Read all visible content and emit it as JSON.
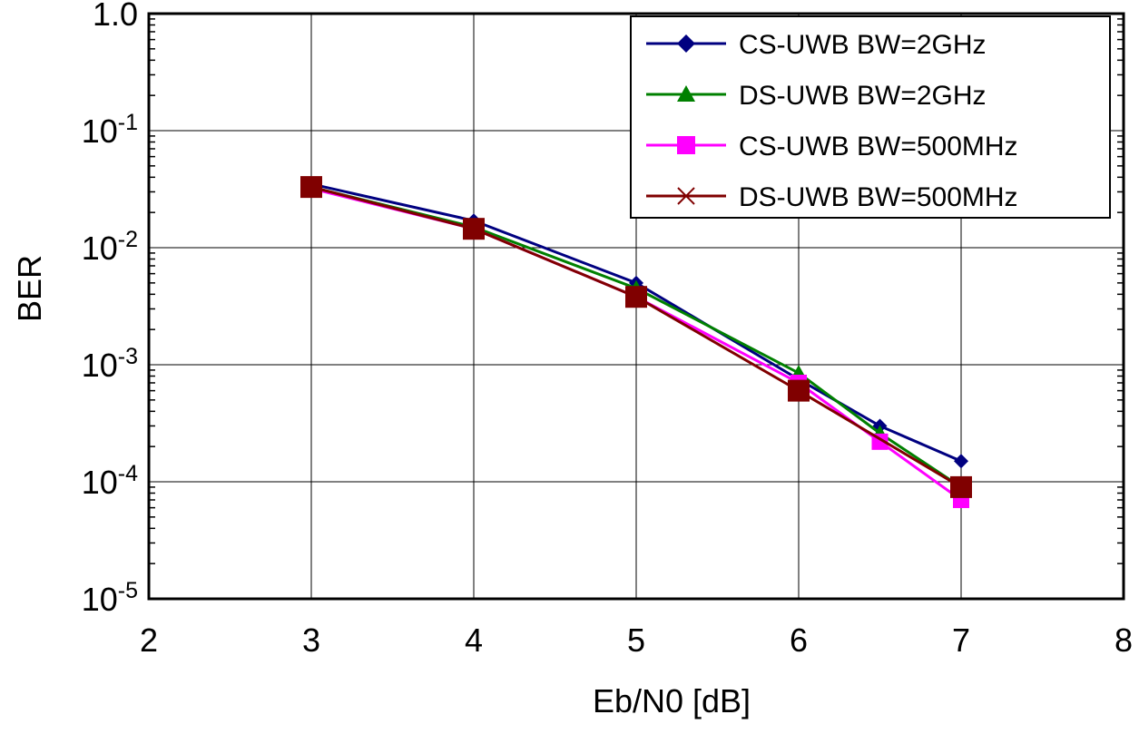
{
  "chart_data": {
    "type": "line",
    "xlabel": "Eb/N0 [dB]",
    "ylabel": "BER",
    "xlim": [
      2,
      8
    ],
    "ylim": [
      1e-05,
      1.0
    ],
    "yscale": "log",
    "grid": true,
    "legend_position": "top-right",
    "x_ticks": [
      "2",
      "3",
      "4",
      "5",
      "6",
      "7",
      "8"
    ],
    "x_tick_values": [
      2,
      3,
      4,
      5,
      6,
      7,
      8
    ],
    "y_ticks": [
      {
        "base": "1.0",
        "exp": ""
      },
      {
        "base": "10",
        "exp": "-1"
      },
      {
        "base": "10",
        "exp": "-2"
      },
      {
        "base": "10",
        "exp": "-3"
      },
      {
        "base": "10",
        "exp": "-4"
      },
      {
        "base": "10",
        "exp": "-5"
      }
    ],
    "y_tick_values": [
      1.0,
      0.1,
      0.01,
      0.001,
      0.0001,
      1e-05
    ],
    "series": [
      {
        "name": "CS-UWB BW=2GHz",
        "color": "#000080",
        "marker": "diamond",
        "x": [
          3,
          4,
          5,
          6,
          6.5,
          7
        ],
        "y": [
          0.035,
          0.017,
          0.005,
          0.00075,
          0.0003,
          0.00015
        ]
      },
      {
        "name": "DS-UWB BW=2GHz",
        "color": "#008000",
        "marker": "triangle",
        "x": [
          3,
          4,
          5,
          6,
          6.5,
          7
        ],
        "y": [
          0.033,
          0.015,
          0.0045,
          0.00085,
          0.00026,
          9e-05
        ]
      },
      {
        "name": "CS-UWB BW=500MHz",
        "color": "#ff00ff",
        "marker": "square",
        "x": [
          3,
          4,
          5,
          6,
          6.5,
          7
        ],
        "y": [
          0.032,
          0.0145,
          0.0038,
          0.0007,
          0.00022,
          7e-05
        ]
      },
      {
        "name": "DS-UWB BW=500MHz",
        "color": "#800000",
        "marker": "x-square",
        "x": [
          3,
          4,
          5,
          6,
          7
        ],
        "y": [
          0.033,
          0.0145,
          0.0038,
          0.0006,
          9e-05
        ]
      }
    ]
  }
}
